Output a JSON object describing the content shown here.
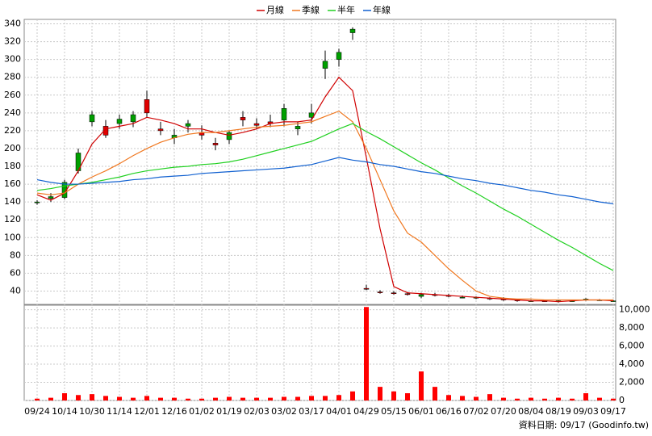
{
  "chart_data": {
    "type": "candlestick",
    "categories": [
      "09/24",
      null,
      "10/14",
      null,
      "10/30",
      null,
      "11/14",
      null,
      "12/01",
      null,
      "12/16",
      null,
      "01/02",
      null,
      "01/19",
      null,
      "02/03",
      null,
      "03/02",
      null,
      "03/17",
      null,
      "04/01",
      null,
      "04/29",
      null,
      "05/15",
      null,
      "06/01",
      null,
      "06/16",
      null,
      "07/02",
      null,
      "07/20",
      null,
      "08/04",
      null,
      "08/19",
      null,
      "09/03",
      null,
      "09/17"
    ],
    "candles": {
      "open": [
        139,
        144,
        145,
        175,
        230,
        225,
        228,
        230,
        255,
        222,
        212,
        225,
        218,
        206,
        210,
        235,
        228,
        230,
        232,
        222,
        235,
        290,
        300,
        330,
        43,
        39,
        38,
        37,
        34,
        36,
        35,
        33,
        32,
        32,
        31,
        30,
        29,
        29,
        28,
        29,
        30,
        30,
        29
      ],
      "high": [
        142,
        150,
        165,
        200,
        242,
        232,
        238,
        242,
        265,
        230,
        222,
        232,
        226,
        212,
        220,
        242,
        234,
        238,
        250,
        230,
        250,
        310,
        312,
        336,
        47,
        41,
        40,
        39,
        38,
        38,
        37,
        35,
        34,
        33,
        33,
        31,
        30,
        30,
        30,
        30,
        32,
        31,
        30
      ],
      "low": [
        137,
        140,
        143,
        172,
        225,
        212,
        222,
        224,
        235,
        215,
        205,
        218,
        210,
        198,
        205,
        225,
        222,
        224,
        225,
        215,
        228,
        278,
        292,
        322,
        41,
        37,
        36,
        35,
        32,
        34,
        33,
        32,
        31,
        30,
        29,
        28,
        28,
        28,
        27,
        28,
        29,
        29,
        28
      ],
      "close": [
        140,
        146,
        162,
        195,
        238,
        215,
        233,
        238,
        240,
        220,
        215,
        228,
        215,
        204,
        218,
        232,
        226,
        228,
        245,
        225,
        240,
        298,
        308,
        334,
        42,
        38,
        37,
        36,
        36,
        35,
        34,
        33,
        33,
        31,
        30,
        29,
        29,
        28,
        29,
        29,
        31,
        30,
        29
      ],
      "up_color": "#00a000",
      "down_color": "#e00000"
    },
    "series": [
      {
        "name": "月線",
        "color": "#d00000",
        "values": [
          148,
          142,
          150,
          175,
          205,
          222,
          225,
          228,
          235,
          232,
          228,
          222,
          222,
          218,
          215,
          218,
          222,
          228,
          230,
          230,
          232,
          258,
          280,
          265,
          190,
          110,
          45,
          38,
          37,
          36,
          35,
          34,
          33,
          32,
          31,
          30,
          29,
          29,
          28,
          29,
          30,
          30,
          29
        ]
      },
      {
        "name": "季線",
        "color": "#f07820",
        "values": [
          150,
          148,
          150,
          160,
          168,
          175,
          183,
          192,
          200,
          207,
          212,
          216,
          218,
          218,
          220,
          222,
          224,
          225,
          226,
          228,
          230,
          236,
          242,
          230,
          200,
          165,
          130,
          105,
          95,
          80,
          65,
          52,
          40,
          34,
          32,
          31,
          31,
          30,
          30,
          30,
          30,
          30,
          30
        ]
      },
      {
        "name": "半年",
        "color": "#20d020",
        "values": [
          153,
          155,
          158,
          160,
          162,
          165,
          168,
          172,
          175,
          177,
          179,
          180,
          182,
          183,
          185,
          188,
          192,
          196,
          200,
          204,
          208,
          215,
          222,
          228,
          219,
          211,
          202,
          193,
          184,
          176,
          167,
          158,
          150,
          141,
          132,
          124,
          115,
          106,
          97,
          89,
          80,
          71,
          63
        ]
      },
      {
        "name": "年線",
        "color": "#1060d0",
        "values": [
          165,
          162,
          160,
          160,
          161,
          162,
          163,
          165,
          166,
          168,
          169,
          170,
          172,
          173,
          174,
          175,
          176,
          177,
          178,
          180,
          182,
          186,
          190,
          187,
          185,
          182,
          180,
          177,
          174,
          172,
          169,
          166,
          164,
          161,
          159,
          156,
          153,
          151,
          148,
          146,
          143,
          140,
          138
        ]
      }
    ],
    "ylim": [
      25,
      345
    ],
    "yticks": [
      40,
      60,
      80,
      100,
      120,
      140,
      160,
      180,
      200,
      220,
      240,
      260,
      280,
      300,
      320,
      340
    ],
    "volume": {
      "color": "#ff0000",
      "values": [
        200,
        300,
        800,
        600,
        700,
        500,
        400,
        300,
        500,
        300,
        300,
        200,
        200,
        300,
        400,
        300,
        300,
        300,
        400,
        400,
        500,
        500,
        600,
        1000,
        10300,
        1500,
        1000,
        800,
        3200,
        1500,
        600,
        500,
        400,
        700,
        300,
        200,
        300,
        200,
        300,
        200,
        800,
        300,
        200
      ],
      "y2lim": [
        0,
        10500
      ],
      "y2ticks": [
        0,
        {
          "value": 2000,
          "label": "2,000"
        },
        {
          "value": 4000,
          "label": "4,000"
        },
        {
          "value": 6000,
          "label": "6,000"
        },
        {
          "value": 8000,
          "label": "8,000"
        },
        {
          "value": 10000,
          "label": "10,000"
        }
      ]
    },
    "grid": true,
    "footer": "資料日期: 09/17 (Goodinfo.tw)"
  }
}
